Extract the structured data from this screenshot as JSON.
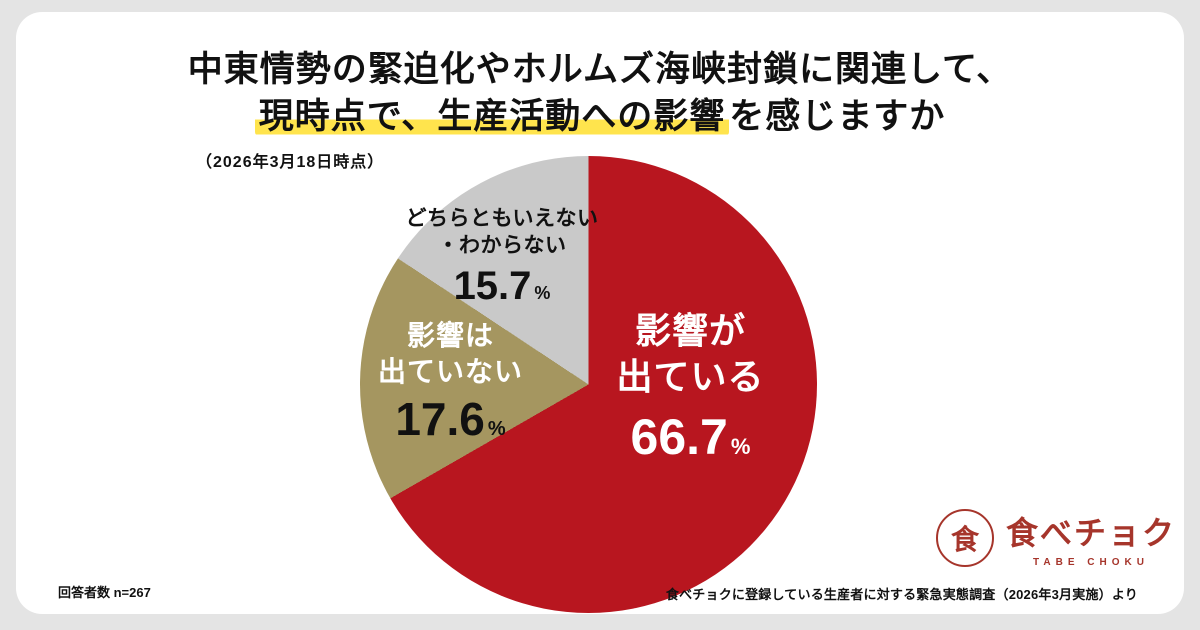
{
  "title": {
    "line1": "中東情勢の緊迫化やホルムズ海峡封鎖に関連して、",
    "line2_highlight": "現時点で、生産活動への影響",
    "line2_rest": "を感じますか",
    "date_note": "（2026年3月18日時点）"
  },
  "chart_data": {
    "type": "pie",
    "title": "中東情勢の緊迫化やホルムズ海峡封鎖に関連して、現時点で、生産活動への影響を感じますか",
    "subtitle": "（2026年3月18日時点）",
    "unit": "%",
    "n": 267,
    "start_angle_deg": 0,
    "direction": "clockwise",
    "legend": "none",
    "slices": [
      {
        "label": "影響が出ている",
        "value": 66.7,
        "color": "#b8161f"
      },
      {
        "label": "影響は出ていない",
        "value": 17.6,
        "color": "#a59660"
      },
      {
        "label": "どちらともいえない・わからない",
        "value": 15.7,
        "color": "#c9c9c9"
      }
    ]
  },
  "pie_labels": {
    "affected": {
      "l1": "影響が",
      "l2": "出ている",
      "value": "66.7"
    },
    "not_affected": {
      "l1": "影響は",
      "l2": "出ていない",
      "value": "17.6"
    },
    "neither": {
      "l1": "どちらともいえない",
      "l2": "・わからない",
      "value": "15.7"
    }
  },
  "footer": {
    "respondents": "回答者数 n=267",
    "source": "食べチョクに登録している生産者に対する緊急実態調査（2026年3月実施）より"
  },
  "logo": {
    "glyph": "食",
    "name": "食べチョク",
    "sub": "TABE CHOKU"
  },
  "colors": {
    "highlight": "#ffe44d",
    "slice_affected": "#b8161f",
    "slice_not_affected": "#a59660",
    "slice_neither": "#c9c9c9",
    "logo_red": "#a6352b",
    "background": "#e4e4e4",
    "card": "#ffffff"
  }
}
